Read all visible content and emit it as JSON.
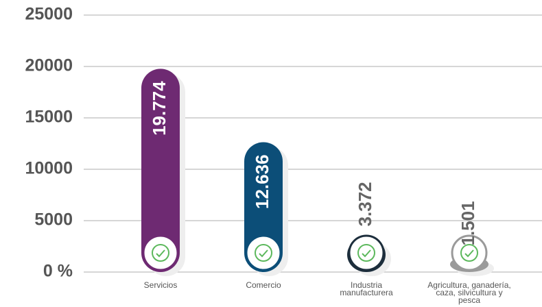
{
  "chart_data": {
    "type": "bar",
    "categories": [
      "Servicios",
      "Comercio",
      "Industria manufacturera",
      "Agricultura, ganadería, caza, silvicultura y pesca"
    ],
    "values": [
      19774,
      12636,
      3372,
      1501
    ],
    "value_labels": [
      "19.774",
      "12.636",
      "3.372",
      "1.501"
    ],
    "colors": [
      "#6e2a72",
      "#0c4e78",
      "#1d2e3c",
      "#9a9a9a"
    ],
    "ylim": [
      0,
      25000
    ],
    "yticks": [
      {
        "value": 0,
        "label": "0 %"
      },
      5000,
      10000,
      15000,
      20000,
      25000
    ],
    "grid": true
  }
}
